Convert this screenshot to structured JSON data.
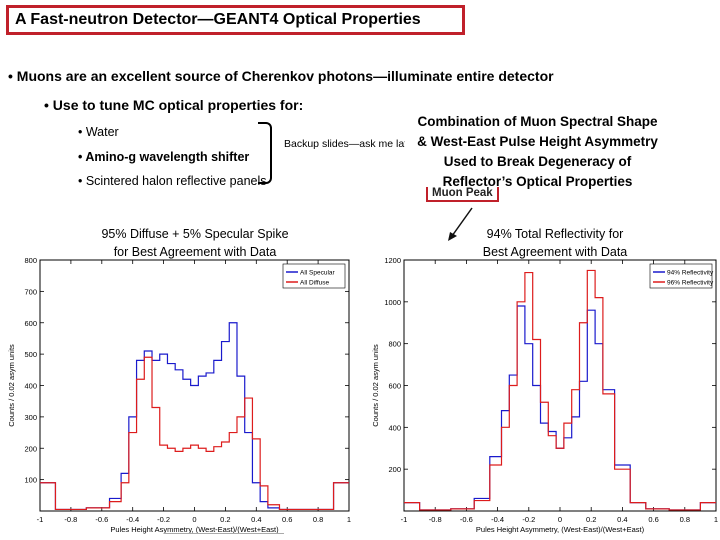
{
  "slide": {
    "title": "A Fast-neutron Detector—GEANT4 Optical Properties",
    "bullet_1": "• Muons are an excellent source of Cherenkov photons—illuminate entire detector",
    "bullet_2": "• Use to tune MC optical properties for:",
    "sub_items": [
      "• Water",
      "• Amino-g wavelength shifter",
      "• Scintered halon reflective panels"
    ],
    "backup_note": "Backup slides—ask me later",
    "callout_lines": [
      "Combination of Muon Spectral Shape",
      "& West-East Pulse Height Asymmetry",
      "Used to Break Degeneracy of",
      "Reflector’s Optical Properties"
    ],
    "muon_peak_label": "Muon Peak",
    "left_caption_lines": [
      "95% Diffuse + 5% Specular Spike",
      "for Best Agreement with  Data"
    ],
    "right_caption_lines": [
      "94% Total Reflectivity for",
      "Best Agreement with Data"
    ]
  },
  "colors": {
    "title_border": "#c0202a",
    "series_blue": "#1a1acc",
    "series_red": "#dd1c1c"
  },
  "chart_data": [
    {
      "type": "line",
      "xlabel": "Pules Height Asymmetry, (West-East)/(West+East)",
      "ylabel": "Counts / 0.02 asym units",
      "xlim": [
        -1,
        1
      ],
      "ylim": [
        0,
        800
      ],
      "xticks": [
        "-1",
        "-0.8",
        "-0.6",
        "-0.4",
        "-0.2",
        "0",
        "0.2",
        "0.4",
        "0.6",
        "0.8",
        "1"
      ],
      "yticks": [
        "100",
        "200",
        "300",
        "400",
        "500",
        "600",
        "700",
        "800"
      ],
      "legend": "top-right",
      "x": [
        -1.0,
        -0.8,
        -0.6,
        -0.5,
        -0.45,
        -0.4,
        -0.35,
        -0.3,
        -0.25,
        -0.2,
        -0.15,
        -0.1,
        -0.05,
        0.0,
        0.05,
        0.1,
        0.15,
        0.2,
        0.25,
        0.3,
        0.35,
        0.4,
        0.45,
        0.5,
        0.6,
        0.8,
        1.0
      ],
      "series": [
        {
          "name": "All Specular",
          "values": [
            90,
            5,
            10,
            40,
            120,
            300,
            480,
            510,
            480,
            500,
            470,
            450,
            420,
            400,
            430,
            440,
            480,
            540,
            600,
            430,
            250,
            90,
            30,
            10,
            5,
            5,
            90
          ]
        },
        {
          "name": "All Diffuse",
          "values": [
            90,
            5,
            10,
            30,
            90,
            250,
            420,
            490,
            330,
            210,
            200,
            190,
            200,
            210,
            200,
            190,
            205,
            220,
            250,
            300,
            360,
            230,
            80,
            20,
            5,
            5,
            90
          ]
        }
      ]
    },
    {
      "type": "line",
      "xlabel": "Pules Height Asymmetry, (West-East)/(West+East)",
      "ylabel": "Counts / 0.02 asym units",
      "xlim": [
        -1,
        1
      ],
      "ylim": [
        0,
        1200
      ],
      "xticks": [
        "-1",
        "-0.8",
        "-0.6",
        "-0.4",
        "-0.2",
        "0",
        "0.2",
        "0.4",
        "0.6",
        "0.8",
        "1"
      ],
      "yticks": [
        "200",
        "400",
        "600",
        "800",
        "1000",
        "1200"
      ],
      "legend": "top-right",
      "x": [
        -1.0,
        -0.8,
        -0.6,
        -0.5,
        -0.4,
        -0.35,
        -0.3,
        -0.25,
        -0.2,
        -0.15,
        -0.1,
        -0.05,
        0.0,
        0.05,
        0.1,
        0.15,
        0.2,
        0.25,
        0.3,
        0.4,
        0.5,
        0.6,
        0.8,
        1.0
      ],
      "series": [
        {
          "name": "94% Reflectivity",
          "values": [
            40,
            5,
            10,
            60,
            260,
            480,
            650,
            980,
            800,
            600,
            420,
            380,
            300,
            350,
            450,
            620,
            960,
            800,
            580,
            220,
            40,
            10,
            5,
            40
          ]
        },
        {
          "name": "96% Reflectivity",
          "values": [
            40,
            5,
            10,
            50,
            220,
            400,
            600,
            1000,
            1140,
            820,
            520,
            360,
            300,
            420,
            580,
            900,
            1150,
            1020,
            560,
            200,
            40,
            10,
            5,
            40
          ]
        }
      ]
    }
  ]
}
